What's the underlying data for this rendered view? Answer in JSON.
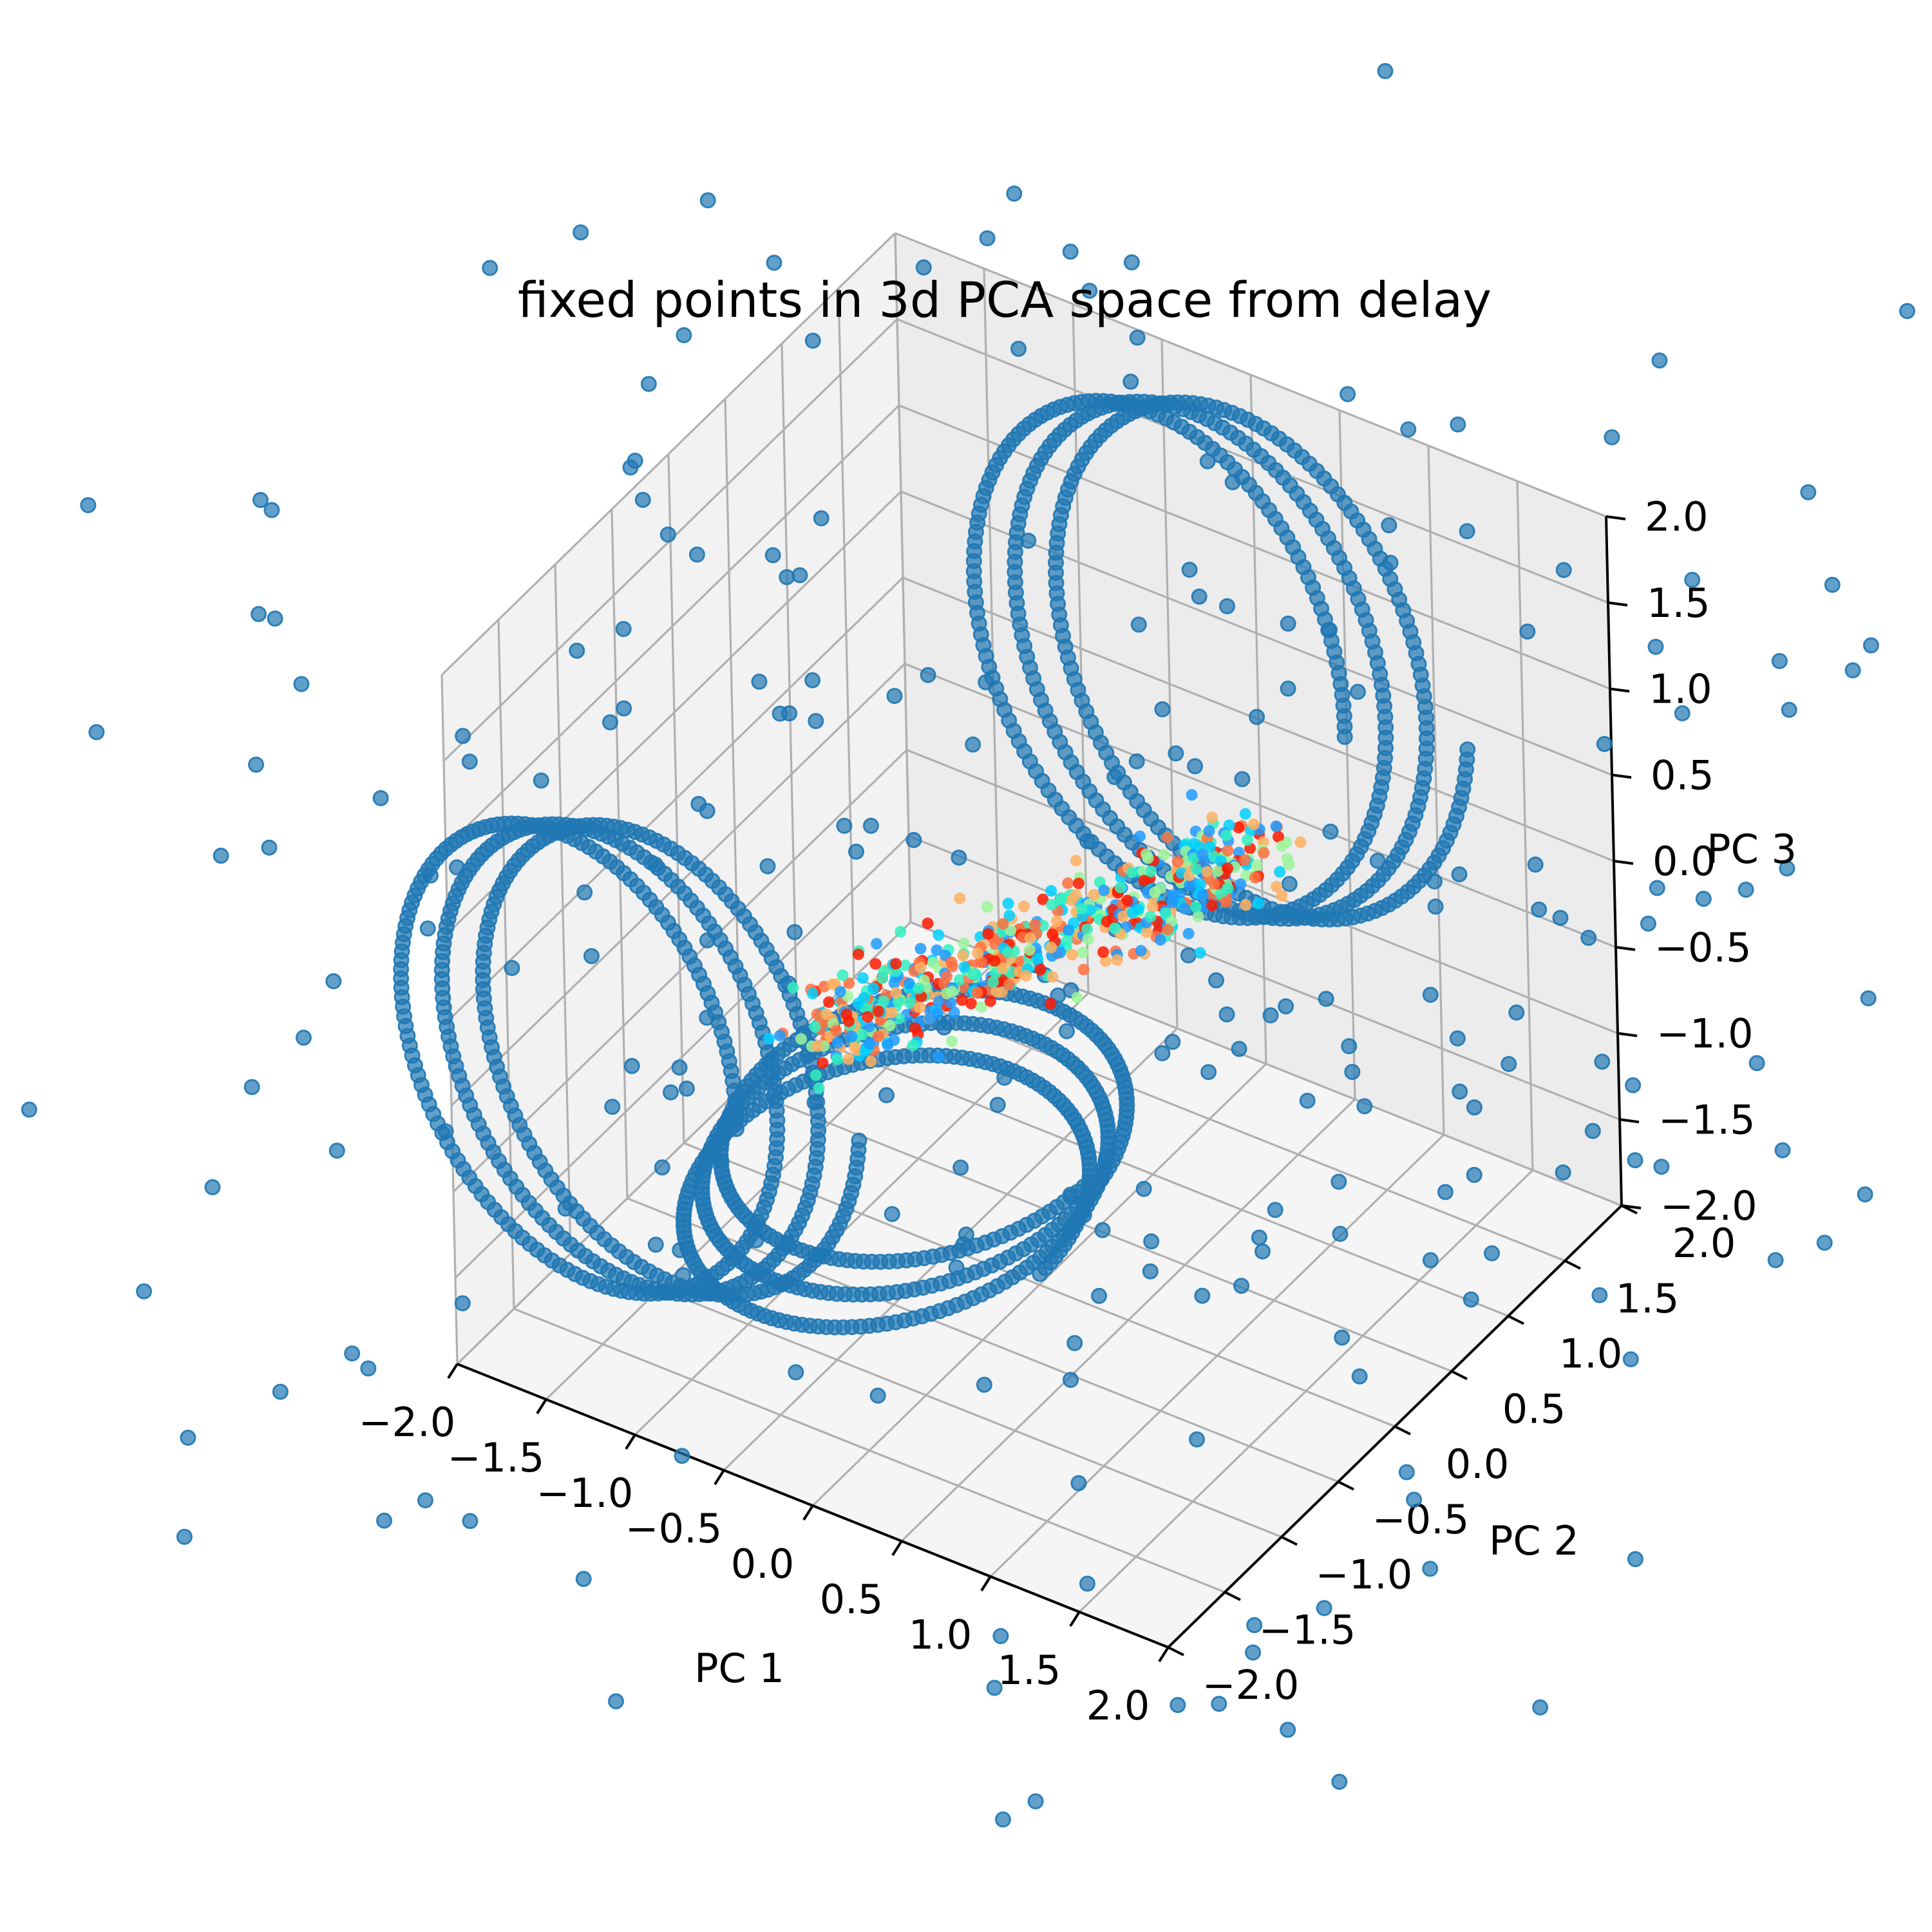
{
  "chart_data": {
    "type": "scatter",
    "title": "fixed points in 3d PCA space from delay",
    "projection": "3d",
    "xlabel": "PC 1",
    "ylabel": "PC 2",
    "zlabel": "PC 3",
    "xlim": [
      -2.0,
      2.0
    ],
    "ylim": [
      -2.0,
      2.0
    ],
    "zlim": [
      -2.0,
      2.0
    ],
    "grid": true,
    "x_ticks": [
      "−2.0",
      "−1.5",
      "−1.0",
      "−0.5",
      "0.0",
      "0.5",
      "1.0",
      "1.5",
      "2.0"
    ],
    "y_ticks": [
      "−2.0",
      "−1.5",
      "−1.0",
      "−0.5",
      "0.0",
      "0.5",
      "1.0",
      "1.5",
      "2.0"
    ],
    "z_ticks": [
      "−2.0",
      "−1.5",
      "−1.0",
      "−0.5",
      "0.0",
      "0.5",
      "1.0",
      "1.5",
      "2.0"
    ],
    "series": [
      {
        "marker_color": "#1f77b4",
        "description_of_shape": "three helical/loop trajectories of fixed points plus scattered distant points",
        "loops": [
          {
            "center": [
              -1.3,
              -1.6,
              -0.2
            ],
            "radius": 1.0,
            "turns": 3,
            "plane": "xz"
          },
          {
            "center": [
              0.0,
              1.6,
              0.6
            ],
            "radius": 1.1,
            "turns": 3,
            "plane": "xz"
          },
          {
            "center": [
              -0.6,
              -0.2,
              -1.4
            ],
            "radius": 0.9,
            "turns": 3,
            "plane": "xy"
          }
        ]
      },
      {
        "colormap": "rainbow",
        "colors": [
          "#1f9bff",
          "#00d0ff",
          "#34f0c0",
          "#9cf59a",
          "#ffb060",
          "#ff7040",
          "#ff1a00"
        ],
        "description_of_shape": "dense elongated cloud along the diagonal from about (-0.9,-0.5,-0.6) to (0.9,0.6,0.5)",
        "start": [
          -0.9,
          -0.5,
          -0.6
        ],
        "end": [
          0.9,
          0.6,
          0.5
        ]
      }
    ]
  }
}
